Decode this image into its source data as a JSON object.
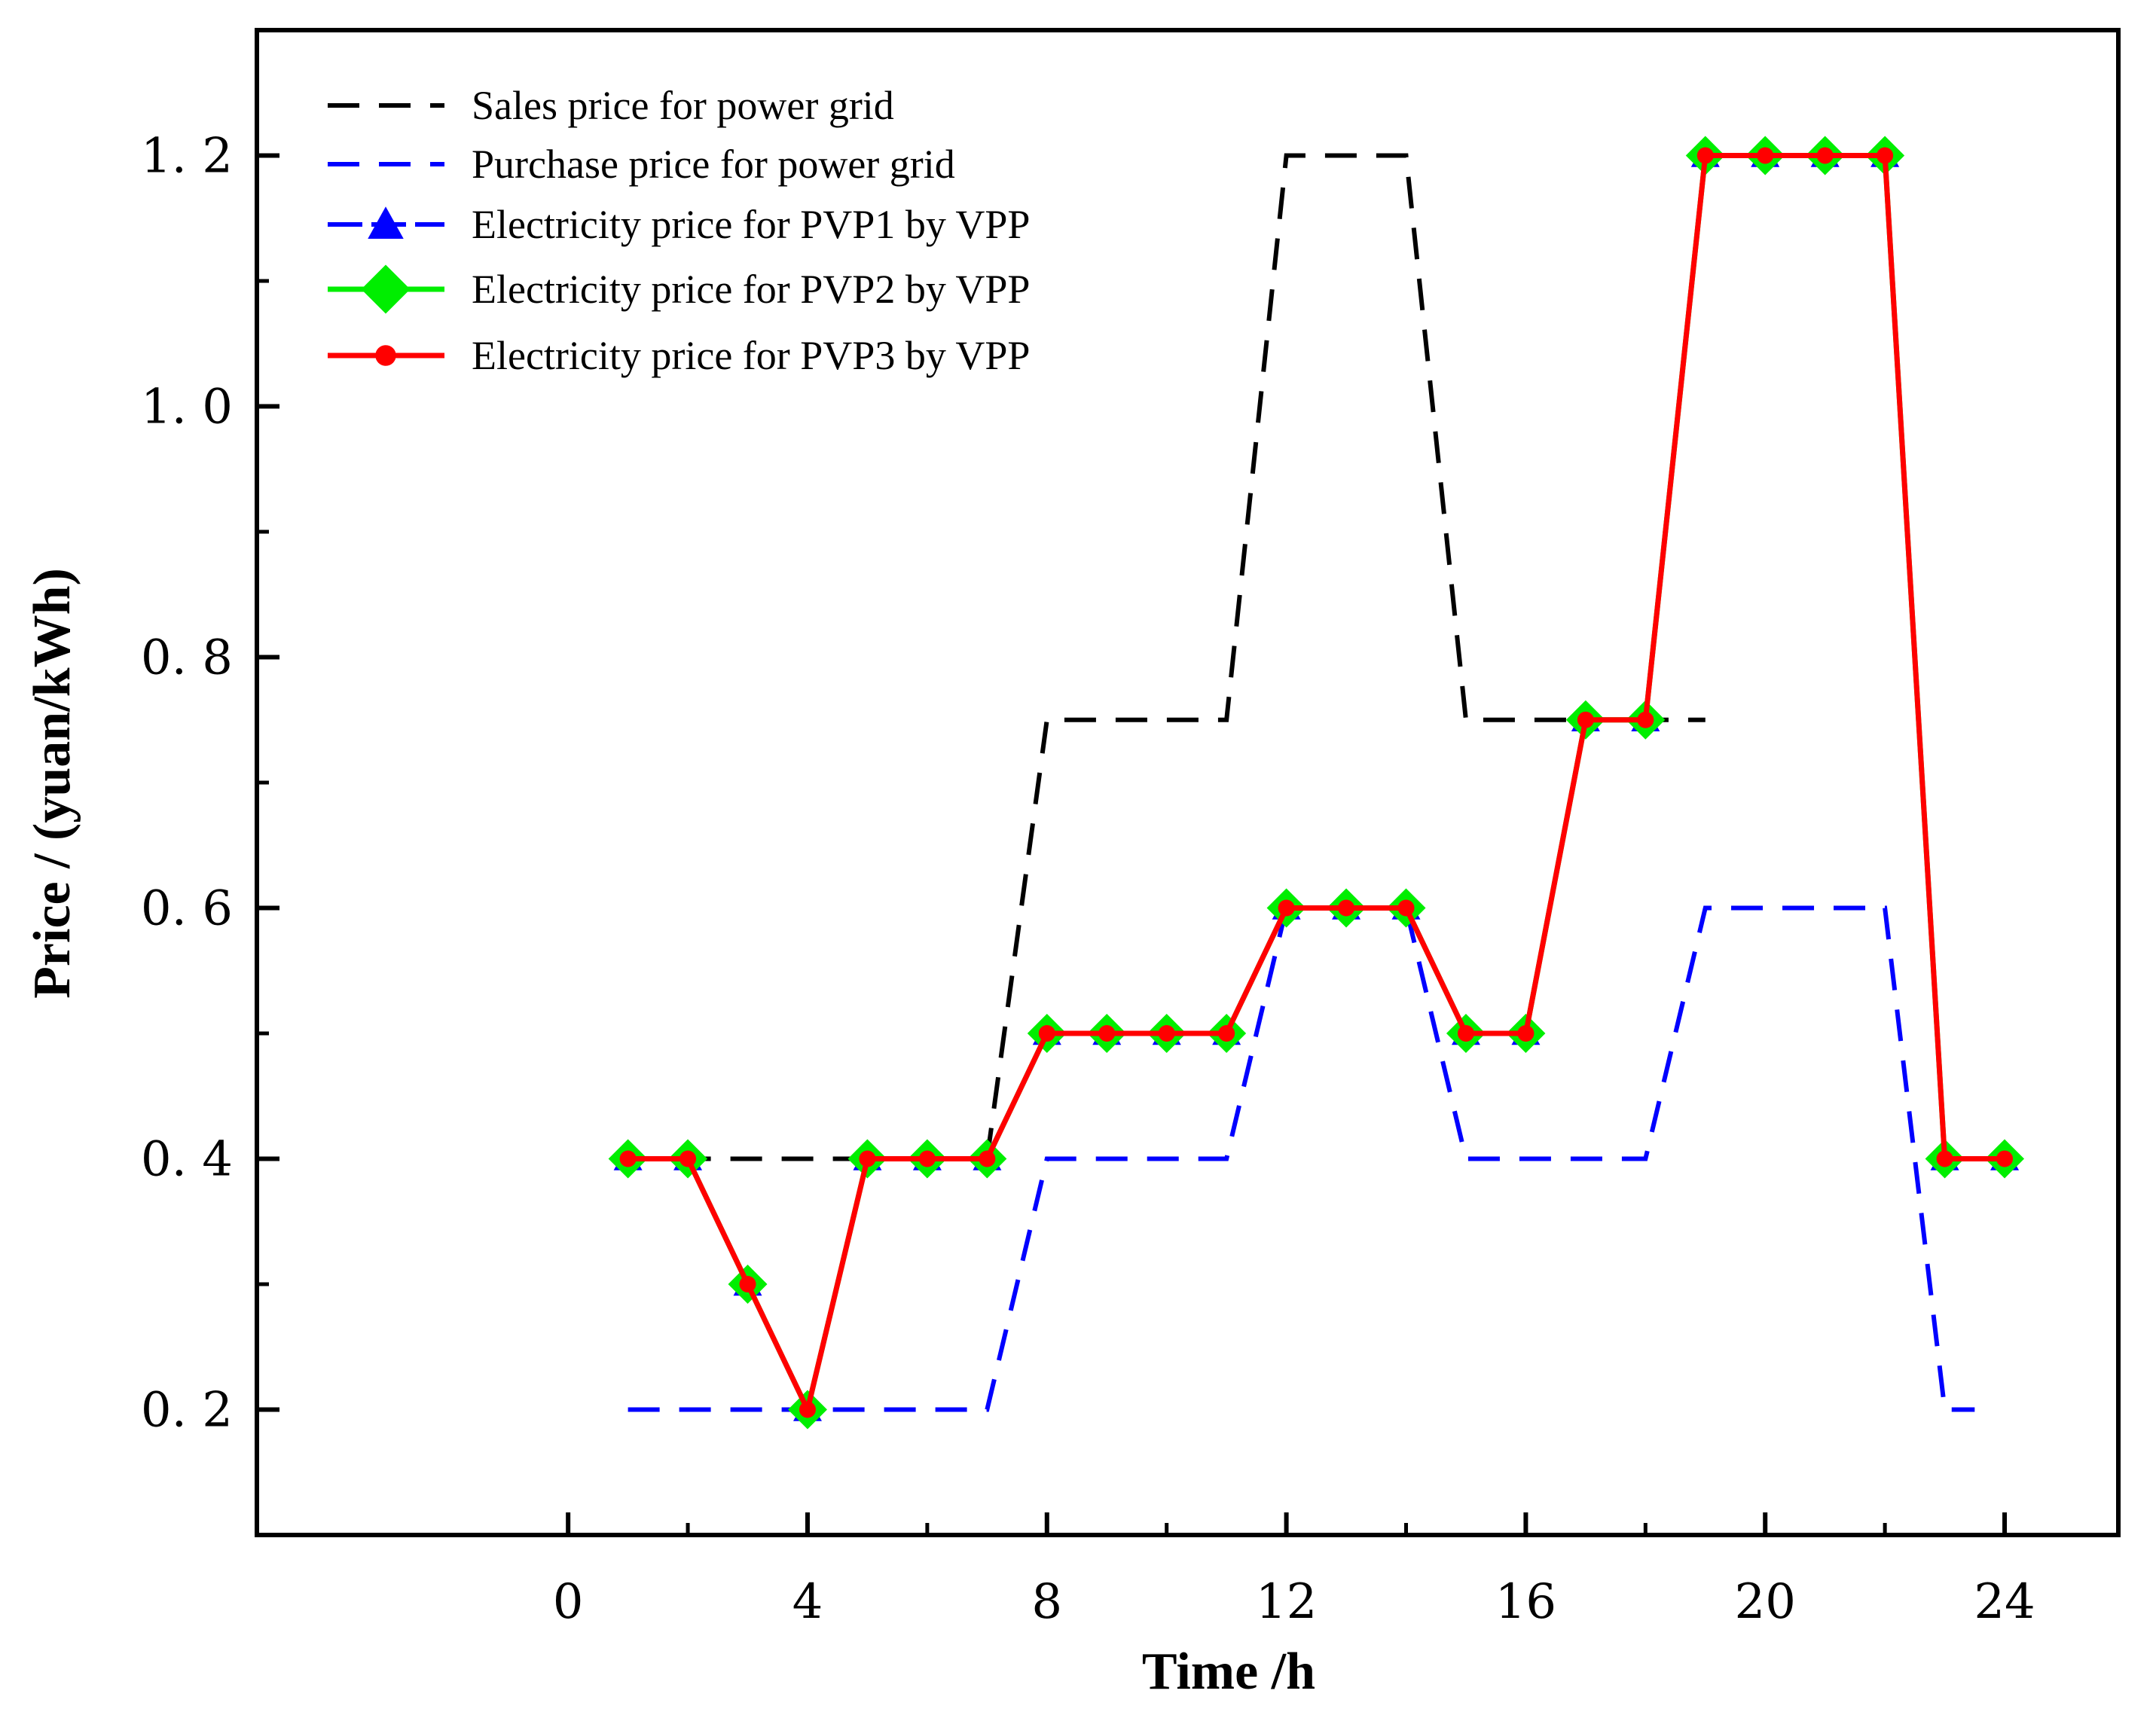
{
  "chart_data": {
    "type": "line",
    "title": "",
    "xlabel": "Time /h",
    "ylabel": "Price / (yuan/kWh)",
    "xlim": [
      -5.2,
      25.9
    ],
    "ylim": [
      0.1,
      1.3
    ],
    "xticks": [
      0,
      4,
      8,
      12,
      16,
      20,
      24
    ],
    "xtick_labels": [
      "0",
      "4",
      "8",
      "12",
      "16",
      "20",
      "24"
    ],
    "xminor": [
      2,
      6,
      10,
      14,
      18,
      22
    ],
    "yticks": [
      0.2,
      0.4,
      0.6,
      0.8,
      1.0,
      1.2
    ],
    "ytick_labels": [
      "0. 2",
      "0. 4",
      "0. 6",
      "0. 8",
      "1. 0",
      "1. 2"
    ],
    "yminor": [
      0.3,
      0.5,
      0.7,
      0.9,
      1.1
    ],
    "grid": false,
    "legend_position": "top-left",
    "x": [
      1,
      2,
      3,
      4,
      5,
      6,
      7,
      8,
      9,
      10,
      11,
      12,
      13,
      14,
      15,
      16,
      17,
      18,
      19,
      20,
      21,
      22,
      23,
      24
    ],
    "series": [
      {
        "name": "Sales price for power grid",
        "color": "#000000",
        "style": "dashed",
        "marker": "none",
        "x": [
          1,
          7,
          8,
          11,
          12,
          14,
          15,
          18,
          19
        ],
        "values": [
          0.4,
          0.4,
          0.75,
          0.75,
          1.2,
          1.2,
          0.75,
          0.75,
          0.75
        ]
      },
      {
        "name": "Purchase price for power grid",
        "color": "#0000ff",
        "style": "dashed",
        "marker": "none",
        "x": [
          1,
          7,
          8,
          11,
          12,
          14,
          15,
          18,
          19,
          22,
          23,
          23.5
        ],
        "values": [
          0.2,
          0.2,
          0.4,
          0.4,
          0.6,
          0.6,
          0.4,
          0.4,
          0.6,
          0.6,
          0.2,
          0.2
        ]
      },
      {
        "name": "Electricity price for PVP1 by VPP",
        "color": "#0000ff",
        "style": "dashed",
        "marker": "triangle",
        "x": [
          1,
          2,
          3,
          4,
          5,
          6,
          7,
          8,
          9,
          10,
          11,
          12,
          13,
          14,
          15,
          16,
          17,
          18,
          19,
          20,
          21,
          22,
          23,
          24
        ],
        "values": [
          0.4,
          0.4,
          0.3,
          0.2,
          0.4,
          0.4,
          0.4,
          0.5,
          0.5,
          0.5,
          0.5,
          0.6,
          0.6,
          0.6,
          0.5,
          0.5,
          0.75,
          0.75,
          1.2,
          1.2,
          1.2,
          1.2,
          0.4,
          0.4
        ]
      },
      {
        "name": "Electricity price for PVP2 by VPP",
        "color": "#00ee00",
        "style": "solid",
        "marker": "diamond",
        "x": [
          1,
          2,
          3,
          4,
          5,
          6,
          7,
          8,
          9,
          10,
          11,
          12,
          13,
          14,
          15,
          16,
          17,
          18,
          19,
          20,
          21,
          22,
          23,
          24
        ],
        "values": [
          0.4,
          0.4,
          0.3,
          0.2,
          0.4,
          0.4,
          0.4,
          0.5,
          0.5,
          0.5,
          0.5,
          0.6,
          0.6,
          0.6,
          0.5,
          0.5,
          0.75,
          0.75,
          1.2,
          1.2,
          1.2,
          1.2,
          0.4,
          0.4
        ]
      },
      {
        "name": "Electricity price for PVP3 by VPP",
        "color": "#ff0000",
        "style": "solid",
        "marker": "circle",
        "x": [
          1,
          2,
          3,
          4,
          5,
          6,
          7,
          8,
          9,
          10,
          11,
          12,
          13,
          14,
          15,
          16,
          17,
          18,
          19,
          20,
          21,
          22,
          23,
          24
        ],
        "values": [
          0.4,
          0.4,
          0.3,
          0.2,
          0.4,
          0.4,
          0.4,
          0.5,
          0.5,
          0.5,
          0.5,
          0.6,
          0.6,
          0.6,
          0.5,
          0.5,
          0.75,
          0.75,
          1.2,
          1.2,
          1.2,
          1.2,
          0.4,
          0.4
        ]
      }
    ]
  }
}
